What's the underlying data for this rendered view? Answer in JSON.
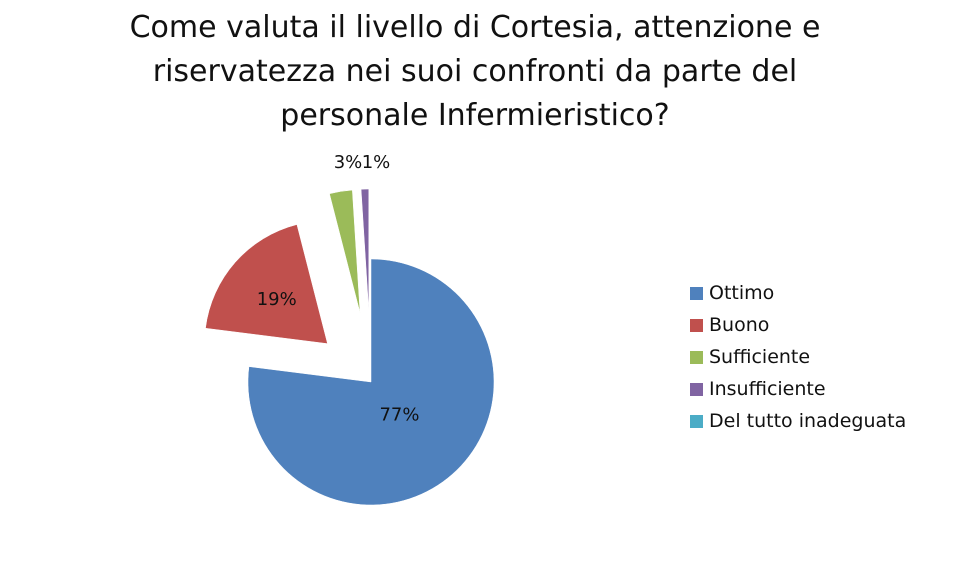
{
  "chart_data": {
    "type": "pie",
    "title_lines": [
      "Come valuta il livello di Cortesia, attenzione e",
      "riservatezza nei suoi confronti da parte del",
      "personale Infermieristico?"
    ],
    "categories": [
      "Ottimo",
      "Buono",
      "Sufficiente",
      "Insufficiente",
      "Del tutto inadeguata"
    ],
    "values": [
      77,
      19,
      3,
      1,
      0
    ],
    "data_labels": [
      "77%",
      "19%",
      "3%",
      "1%",
      ""
    ],
    "colors": [
      "#4f81bd",
      "#c0504d",
      "#9bbb59",
      "#8064a2",
      "#4bacc6"
    ],
    "legend_position": "right",
    "exploded": true
  }
}
